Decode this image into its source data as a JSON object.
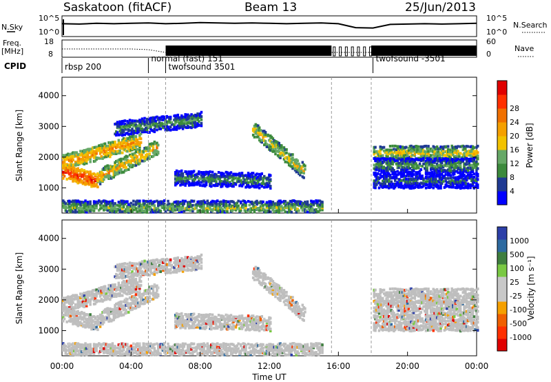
{
  "header": {
    "station": "Saskatoon (fitACF)",
    "beam": "Beam 13",
    "date": "25/Jun/2013"
  },
  "panel_labels": {
    "nsky": "N.Sky",
    "nsky_ticks": [
      "10^5",
      "10^0"
    ],
    "nsearch": "N.Search",
    "nsearch_ticks": [
      "10^5",
      "10^0"
    ],
    "freq": "Freq.",
    "freq_unit": "[MHz]",
    "freq_ticks": [
      "18",
      "8"
    ],
    "nave": "Nave",
    "nave_ticks": [
      "60",
      "0"
    ],
    "cpid": "CPID"
  },
  "cpid_segments": [
    {
      "label": "rbsp 200",
      "start_hour": 0.0
    },
    {
      "label": "normal (fast) 151",
      "start_hour": 5.0
    },
    {
      "label": "twofsound 3501",
      "start_hour": 6.0
    },
    {
      "label": "twofsound -3501",
      "start_hour": 18.0
    }
  ],
  "colors": {
    "power_scale": [
      "#0000ff",
      "#1f3a93",
      "#3c8a3c",
      "#66a866",
      "#f2c200",
      "#f5a000",
      "#f07000",
      "#ff3000",
      "#e00000"
    ],
    "velocity_scale": [
      "#2c3fa8",
      "#2d6aa0",
      "#3f7f3f",
      "#7ac943",
      "#c8c8c8",
      "#c8c8c8",
      "#f5a000",
      "#f06000",
      "#ff3000",
      "#e00000"
    ],
    "ground_scatter": "#bebebe",
    "axis": "#000000"
  },
  "chart_data": [
    {
      "type": "heatmap",
      "quantity": "power",
      "ylabel": "Slant Range [km]",
      "xlim_hours": [
        0,
        24
      ],
      "ylim": [
        180,
        4600
      ],
      "yticks": [
        1000,
        2000,
        3000,
        4000
      ],
      "colorbar_label": "Power [dB]",
      "colorbar_ticks": [
        "4",
        "8",
        "12",
        "16",
        "20",
        "24",
        "28"
      ],
      "colorbar_range": [
        0,
        30
      ],
      "data_gap_hours": [
        15.6,
        17.9
      ],
      "echo_bands": [
        {
          "t0": 0.0,
          "t1": 4.5,
          "r_start": 1800,
          "r_end": 2500,
          "power": 20
        },
        {
          "t0": 0.0,
          "t1": 2.0,
          "r_start": 1500,
          "r_end": 1200,
          "power": 26
        },
        {
          "t0": 2.0,
          "t1": 5.5,
          "r_start": 1300,
          "r_end": 2300,
          "power": 18
        },
        {
          "t0": 3.0,
          "t1": 8.0,
          "r_start": 2900,
          "r_end": 3200,
          "power": 10
        },
        {
          "t0": 6.5,
          "t1": 12.0,
          "r_start": 1300,
          "r_end": 1200,
          "power": 9
        },
        {
          "t0": 0.0,
          "t1": 15.0,
          "r_start": 320,
          "r_end": 320,
          "power": 12
        },
        {
          "t0": 11.0,
          "t1": 14.0,
          "r_start": 2900,
          "r_end": 1500,
          "power": 16
        },
        {
          "t0": 18.0,
          "t1": 24.0,
          "r_start": 2100,
          "r_end": 2100,
          "power": 15
        },
        {
          "t0": 18.0,
          "t1": 24.0,
          "r_start": 1700,
          "r_end": 1700,
          "power": 10
        },
        {
          "t0": 18.0,
          "t1": 24.0,
          "r_start": 1200,
          "r_end": 1200,
          "power": 7
        }
      ]
    },
    {
      "type": "heatmap",
      "quantity": "velocity",
      "xlabel": "Time UT",
      "ylabel": "Slant Range [km]",
      "xticks": [
        "00:00",
        "04:00",
        "08:00",
        "12:00",
        "16:00",
        "20:00",
        "00:00"
      ],
      "xlim_hours": [
        0,
        24
      ],
      "ylim": [
        180,
        4600
      ],
      "yticks": [
        1000,
        2000,
        3000,
        4000
      ],
      "colorbar_label": "Velocity [m s⁻¹]",
      "colorbar_ticks": [
        "1000",
        "500",
        "100",
        "25",
        "-25",
        "-100",
        "-500",
        "-1000"
      ],
      "data_gap_hours": [
        15.6,
        17.9
      ]
    }
  ],
  "nsky_series": [
    3.2,
    3.1,
    3.3,
    3.2,
    3.3,
    3.4,
    3.2,
    3.3,
    3.5,
    3.4,
    3.3,
    3.4,
    3.3,
    3.2,
    3.3,
    3.4,
    3.2,
    2.1,
    2.0,
    3.0,
    3.1,
    3.2,
    3.1,
    3.2,
    3.3
  ],
  "freq_mhz": [
    13.0,
    13.0,
    13.0,
    13.0,
    13.0,
    12.5,
    10.5,
    10.5,
    10.5,
    10.5,
    10.5,
    10.5,
    10.5,
    10.5,
    10.5,
    10.5,
    10.5,
    10.5,
    10.5,
    10.5,
    10.5,
    10.5,
    10.5,
    10.5,
    10.5
  ]
}
